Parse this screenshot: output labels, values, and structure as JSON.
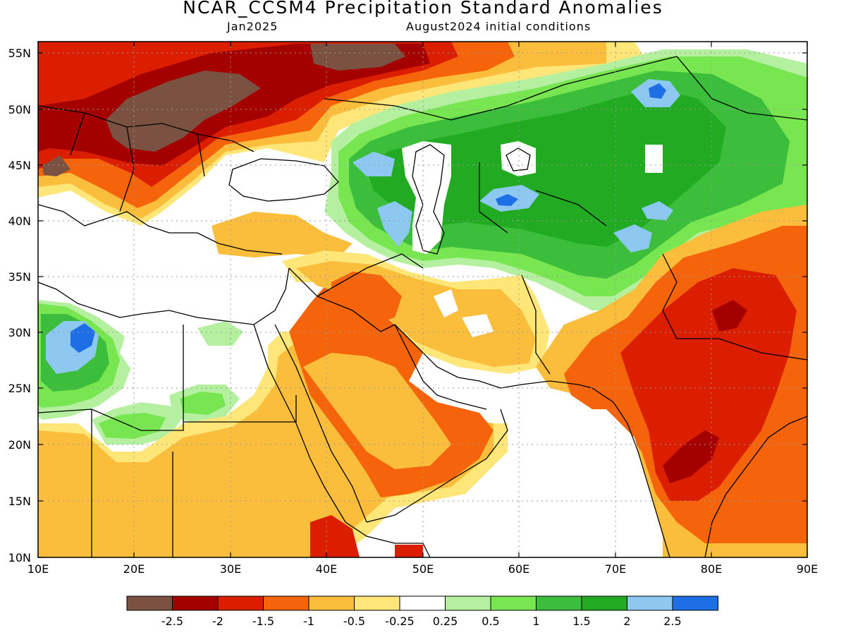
{
  "title": "NCAR_CCSM4 Precipitation Standard Anomalies",
  "forecast_month": "Jan2025",
  "initial_conditions": "August2024 initial conditions",
  "axes": {
    "lon_labels": [
      "10E",
      "20E",
      "30E",
      "40E",
      "50E",
      "60E",
      "70E",
      "80E",
      "90E"
    ],
    "lat_labels": [
      "10N",
      "15N",
      "20N",
      "25N",
      "30N",
      "35N",
      "40N",
      "45N",
      "50N",
      "55N"
    ]
  },
  "colorbar": {
    "colors": [
      "#7b5242",
      "#a50000",
      "#dc1e00",
      "#f5640a",
      "#fabe3c",
      "#ffe678",
      "#ffffff",
      "#b4f0a0",
      "#78e650",
      "#3cbe3c",
      "#23aa23",
      "#8cc8f0",
      "#1e6ee6"
    ],
    "labels": [
      "-2.5",
      "-2",
      "-1.5",
      "-1",
      "-0.5",
      "-0.25",
      "0.25",
      "0.5",
      "1",
      "1.5",
      "2",
      "2.5"
    ]
  },
  "colors": {
    "brown": "#7b5242",
    "dark_red": "#a50000",
    "red": "#dc1e00",
    "orange": "#f5640a",
    "light_orange": "#fabe3c",
    "yellow": "#ffe678",
    "light_green": "#b4f0a0",
    "green": "#78e650",
    "mid_green": "#3cbe3c",
    "dark_green": "#23aa23",
    "light_blue": "#8cc8f0",
    "blue": "#1e6ee6"
  }
}
